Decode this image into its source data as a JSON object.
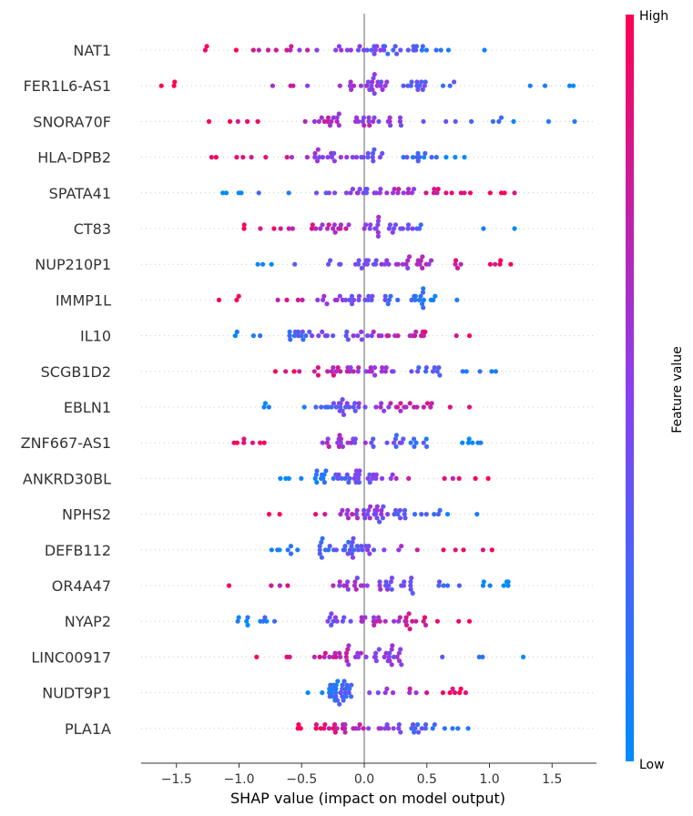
{
  "chart_data": {
    "type": "scatter",
    "subtype": "shap-beeswarm",
    "xlabel": "SHAP value (impact on model output)",
    "xlim": [
      -1.8,
      1.82
    ],
    "xticks": [
      "−1.5",
      "−1.0",
      "−0.5",
      "0.0",
      "0.5",
      "1.0",
      "1.5"
    ],
    "xtick_values": [
      -1.5,
      -1.0,
      -0.5,
      0.0,
      0.5,
      1.0,
      1.5
    ],
    "colorbar": {
      "label": "Feature value",
      "high": "High",
      "low": "Low",
      "low_color": "#008bfb",
      "high_color": "#ff0052"
    },
    "features": [
      {
        "name": "NAT1",
        "min": -1.27,
        "max": 0.96,
        "dir": -1,
        "dense": [
          -0.2,
          0.5
        ]
      },
      {
        "name": "FER1L6-AS1",
        "min": -1.62,
        "max": 1.67,
        "dir": -1,
        "dense": [
          -0.2,
          0.5
        ]
      },
      {
        "name": "SNORA70F",
        "min": -1.24,
        "max": 1.68,
        "dir": -1,
        "dense": [
          -0.4,
          0.3
        ]
      },
      {
        "name": "HLA-DPB2",
        "min": -1.22,
        "max": 0.8,
        "dir": -1,
        "dense": [
          -0.4,
          0.6
        ]
      },
      {
        "name": "SPATA41",
        "min": -1.13,
        "max": 1.2,
        "dir": 1,
        "dense": [
          -0.4,
          0.6
        ]
      },
      {
        "name": "CT83",
        "min": -0.96,
        "max": 1.2,
        "dir": -1,
        "dense": [
          -0.45,
          0.5
        ]
      },
      {
        "name": "NUP210P1",
        "min": -0.85,
        "max": 1.17,
        "dir": 1,
        "dense": [
          -0.1,
          0.6
        ]
      },
      {
        "name": "IMMP1L",
        "min": -1.16,
        "max": 0.74,
        "dir": -1,
        "dense": [
          -0.3,
          0.6
        ]
      },
      {
        "name": "IL10",
        "min": -1.03,
        "max": 0.84,
        "dir": 1,
        "dense": [
          -0.6,
          0.5
        ]
      },
      {
        "name": "SCGB1D2",
        "min": -0.71,
        "max": 1.05,
        "dir": -1,
        "dense": [
          -0.4,
          0.6
        ]
      },
      {
        "name": "EBLN1",
        "min": -0.8,
        "max": 0.84,
        "dir": 1,
        "dense": [
          -0.4,
          0.4
        ]
      },
      {
        "name": "ZNF667-AS1",
        "min": -1.04,
        "max": 0.93,
        "dir": -1,
        "dense": [
          -0.3,
          0.5
        ]
      },
      {
        "name": "ANKRD30BL",
        "min": -0.67,
        "max": 0.99,
        "dir": 1,
        "dense": [
          -0.4,
          0.1
        ]
      },
      {
        "name": "NPHS2",
        "min": -0.76,
        "max": 0.9,
        "dir": -1,
        "dense": [
          -0.2,
          0.4
        ]
      },
      {
        "name": "DEFB112",
        "min": -0.74,
        "max": 1.02,
        "dir": 1,
        "dense": [
          -0.4,
          0.1
        ]
      },
      {
        "name": "OR4A47",
        "min": -1.08,
        "max": 1.15,
        "dir": -1,
        "dense": [
          -0.2,
          0.4
        ]
      },
      {
        "name": "NYAP2",
        "min": -1.01,
        "max": 0.84,
        "dir": 1,
        "dense": [
          -0.3,
          0.5
        ]
      },
      {
        "name": "LINC00917",
        "min": -0.86,
        "max": 1.27,
        "dir": -1,
        "dense": [
          -0.4,
          0.3
        ]
      },
      {
        "name": "NUDT9P1",
        "min": -0.45,
        "max": 0.81,
        "dir": 1,
        "dense": [
          -0.3,
          -0.1
        ]
      },
      {
        "name": "PLA1A",
        "min": -0.53,
        "max": 0.83,
        "dir": -1,
        "dense": [
          -0.4,
          0.5
        ]
      }
    ]
  }
}
